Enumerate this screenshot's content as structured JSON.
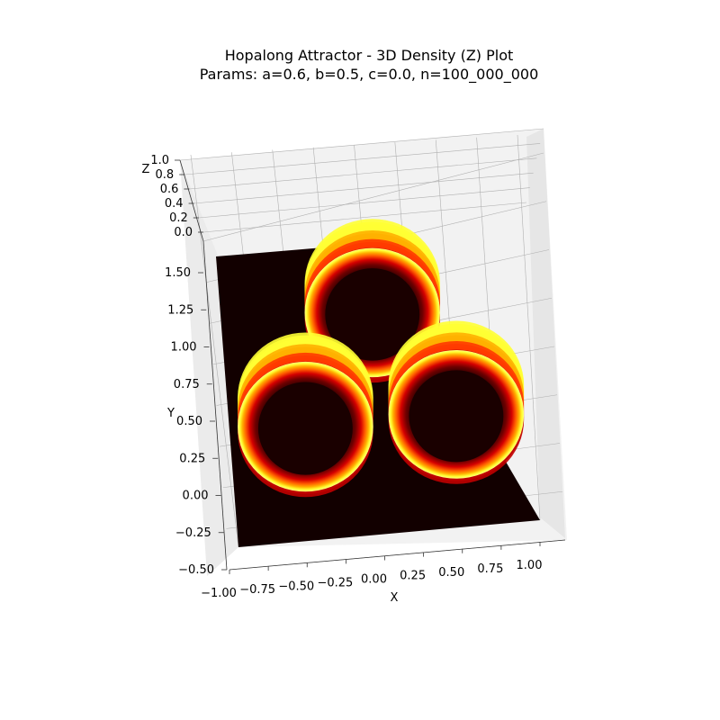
{
  "chart_data": {
    "type": "surface3d",
    "title_line1": "Hopalong Attractor - 3D Density (Z) Plot",
    "title_line2": "Params: a=0.6, b=0.5, c=0.0, n=100_000_000",
    "xlabel": "X",
    "ylabel": "Y",
    "zlabel": "Z",
    "xlim": [
      -1.0,
      1.0
    ],
    "ylim": [
      -0.5,
      1.5
    ],
    "zlim": [
      0.0,
      1.0
    ],
    "x_ticks": [
      "−1.00",
      "−0.75",
      "−0.50",
      "−0.25",
      "0.00",
      "0.25",
      "0.50",
      "0.75",
      "1.00"
    ],
    "y_ticks": [
      "−0.50",
      "−0.25",
      "0.00",
      "0.25",
      "0.50",
      "0.75",
      "1.00",
      "1.25",
      "1.50"
    ],
    "z_ticks": [
      "0.0",
      "0.2",
      "0.4",
      "0.6",
      "0.8",
      "1.0"
    ],
    "colormap": "hot",
    "grid": true,
    "rings": [
      {
        "center_x": 0.0,
        "center_y": 1.0,
        "radius": 0.4
      },
      {
        "center_x": -0.5,
        "center_y": 0.25,
        "radius": 0.4
      },
      {
        "center_x": 0.5,
        "center_y": 0.25,
        "radius": 0.4
      }
    ]
  },
  "colors": {
    "floor": "#120000",
    "pane": "#f2f2f2",
    "grid": "#b0b0b0",
    "ring_outer": "#ffff33",
    "ring_mid": "#ff2a00",
    "ring_inner": "#1a0000"
  }
}
